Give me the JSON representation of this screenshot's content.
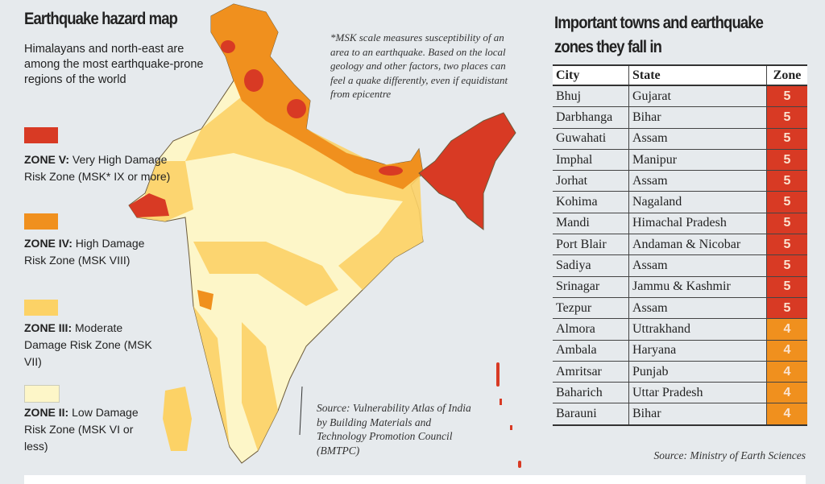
{
  "header": {
    "title": "Earthquake hazard map",
    "subtitle": "Himalayans and north-east are among the most earthquake-prone regions of the world"
  },
  "note": "*MSK scale measures susceptibility of an area to an earthquake. Based on the local geology and other factors, two places can feel a quake differently, even if equidistant from epicentre",
  "legend": [
    {
      "zone": "ZONE V:",
      "desc": "Very High Damage Risk Zone (MSK* IX or more)",
      "color": "#d83a24"
    },
    {
      "zone": "ZONE IV:",
      "desc": "High Damage Risk Zone (MSK VIII)",
      "color": "#f0901e"
    },
    {
      "zone": "ZONE III:",
      "desc": "Moderate Damage Risk Zone (MSK VII)",
      "color": "#fcd266"
    },
    {
      "zone": "ZONE II:",
      "desc": "Low Damage Risk Zone (MSK VI or less)",
      "color": "#fdf6c8"
    }
  ],
  "map_source": "Source: Vulnerability Atlas of India by Building Materials and Technology Promotion Council (BMTPC)",
  "table": {
    "title": "Important towns and earthquake zones they fall in",
    "headers": [
      "City",
      "State",
      "Zone"
    ],
    "rows": [
      [
        "Bhuj",
        "Gujarat",
        "5"
      ],
      [
        "Darbhanga",
        "Bihar",
        "5"
      ],
      [
        "Guwahati",
        "Assam",
        "5"
      ],
      [
        "Imphal",
        "Manipur",
        "5"
      ],
      [
        "Jorhat",
        "Assam",
        "5"
      ],
      [
        "Kohima",
        "Nagaland",
        "5"
      ],
      [
        "Mandi",
        "Himachal Pradesh",
        "5"
      ],
      [
        "Port Blair",
        "Andaman & Nicobar",
        "5"
      ],
      [
        "Sadiya",
        "Assam",
        "5"
      ],
      [
        "Srinagar",
        "Jammu & Kashmir",
        "5"
      ],
      [
        "Tezpur",
        "Assam",
        "5"
      ],
      [
        "Almora",
        "Uttrakhand",
        "4"
      ],
      [
        "Ambala",
        "Haryana",
        "4"
      ],
      [
        "Amritsar",
        "Punjab",
        "4"
      ],
      [
        "Baharich",
        "Uttar Pradesh",
        "4"
      ],
      [
        "Barauni",
        "Bihar",
        "4"
      ]
    ],
    "source": "Source: Ministry of Earth Sciences"
  }
}
